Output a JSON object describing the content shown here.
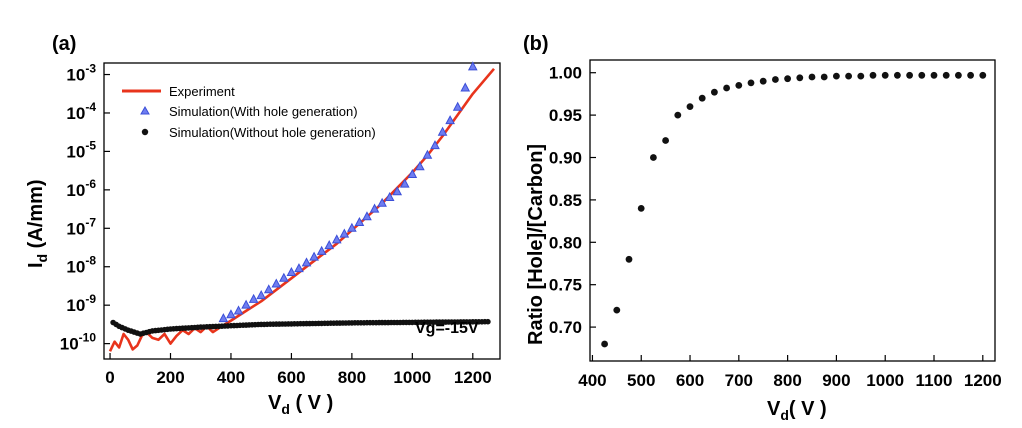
{
  "chart_data": [
    {
      "panel": "(a)",
      "type": "line",
      "yscale": "log",
      "xlabel": {
        "main": "V",
        "sub": "d",
        "rest": " ( V )"
      },
      "ylabel": {
        "main": "I",
        "sub": "d",
        "rest": " (A/mm)"
      },
      "xlim": [
        -20,
        1290
      ],
      "xticks": [
        0,
        200,
        400,
        600,
        800,
        1000,
        1200
      ],
      "ylim_log10": [
        -10.4,
        -2.7
      ],
      "yticks": [
        {
          "exp": -3,
          "label": "-3"
        },
        {
          "exp": -4,
          "label": "-4"
        },
        {
          "exp": -5,
          "label": "-5"
        },
        {
          "exp": -6,
          "label": "-6"
        },
        {
          "exp": -7,
          "label": "-7"
        },
        {
          "exp": -8,
          "label": "-8"
        },
        {
          "exp": -9,
          "label": "-9"
        },
        {
          "exp": -10,
          "label": "-10"
        }
      ],
      "annotation": "Vg=-15V",
      "legend": [
        {
          "name": "Experiment",
          "marker": "line",
          "color": "#e8341c"
        },
        {
          "name": "Simulation(With hole generation)",
          "marker": "triangle",
          "color": "#3b4fd8"
        },
        {
          "name": "Simulation(Without hole generation)",
          "marker": "circle",
          "color": "#111111"
        }
      ],
      "series": [
        {
          "name": "Experiment",
          "x": [
            0,
            15,
            30,
            45,
            60,
            75,
            90,
            105,
            120,
            140,
            160,
            180,
            200,
            220,
            240,
            260,
            280,
            300,
            320,
            340,
            360,
            380,
            400,
            450,
            500,
            550,
            600,
            650,
            700,
            750,
            800,
            850,
            900,
            950,
            1000,
            1050,
            1100,
            1150,
            1200,
            1270
          ],
          "log10_y": [
            -10.2,
            -9.95,
            -10.1,
            -9.75,
            -9.9,
            -10.15,
            -10.05,
            -9.8,
            -9.7,
            -9.85,
            -9.9,
            -9.75,
            -10.0,
            -9.8,
            -9.65,
            -9.75,
            -9.6,
            -9.7,
            -9.55,
            -9.7,
            -9.6,
            -9.5,
            -9.4,
            -9.15,
            -8.9,
            -8.6,
            -8.3,
            -8.0,
            -7.7,
            -7.4,
            -7.05,
            -6.7,
            -6.35,
            -5.95,
            -5.55,
            -5.1,
            -4.6,
            -4.05,
            -3.5,
            -2.85
          ]
        },
        {
          "name": "Simulation(With hole generation)",
          "x": [
            375,
            400,
            425,
            450,
            475,
            500,
            525,
            550,
            575,
            600,
            625,
            650,
            675,
            700,
            725,
            750,
            775,
            800,
            825,
            850,
            875,
            900,
            925,
            950,
            975,
            1000,
            1025,
            1050,
            1075,
            1100,
            1125,
            1150,
            1175,
            1200
          ],
          "log10_y": [
            -9.35,
            -9.25,
            -9.15,
            -9.0,
            -8.85,
            -8.75,
            -8.6,
            -8.45,
            -8.3,
            -8.15,
            -8.05,
            -7.9,
            -7.75,
            -7.6,
            -7.45,
            -7.3,
            -7.15,
            -7.0,
            -6.85,
            -6.7,
            -6.5,
            -6.35,
            -6.2,
            -6.05,
            -5.85,
            -5.6,
            -5.4,
            -5.1,
            -4.85,
            -4.5,
            -4.2,
            -3.85,
            -3.35,
            -2.8
          ]
        },
        {
          "name": "Simulation(Without hole generation)",
          "x_start": 10,
          "x_end": 1250,
          "x_step": 10,
          "log10_y_points": [
            [
              10,
              -9.45
            ],
            [
              30,
              -9.55
            ],
            [
              60,
              -9.65
            ],
            [
              100,
              -9.75
            ],
            [
              140,
              -9.67
            ],
            [
              200,
              -9.62
            ],
            [
              300,
              -9.57
            ],
            [
              500,
              -9.5
            ],
            [
              800,
              -9.46
            ],
            [
              1250,
              -9.43
            ]
          ]
        }
      ]
    },
    {
      "panel": "(b)",
      "type": "scatter",
      "xlabel": {
        "main": "V",
        "sub": "d",
        "rest": "( V )"
      },
      "ylabel": "Ratio [Hole]/[Carbon]",
      "xlim": [
        395,
        1225
      ],
      "ylim": [
        0.66,
        1.015
      ],
      "xticks": [
        400,
        500,
        600,
        700,
        800,
        900,
        1000,
        1100,
        1200
      ],
      "yticks": [
        "0.70",
        "0.75",
        "0.80",
        "0.85",
        "0.90",
        "0.95",
        "1.00"
      ],
      "x": [
        425,
        450,
        475,
        500,
        525,
        550,
        575,
        600,
        625,
        650,
        675,
        700,
        725,
        750,
        775,
        800,
        825,
        850,
        875,
        900,
        925,
        950,
        975,
        1000,
        1025,
        1050,
        1075,
        1100,
        1125,
        1150,
        1175,
        1200
      ],
      "y": [
        0.68,
        0.72,
        0.78,
        0.84,
        0.9,
        0.92,
        0.95,
        0.96,
        0.97,
        0.977,
        0.982,
        0.985,
        0.988,
        0.99,
        0.992,
        0.993,
        0.994,
        0.995,
        0.995,
        0.996,
        0.996,
        0.996,
        0.997,
        0.997,
        0.997,
        0.997,
        0.997,
        0.997,
        0.997,
        0.997,
        0.997,
        0.997
      ]
    }
  ]
}
